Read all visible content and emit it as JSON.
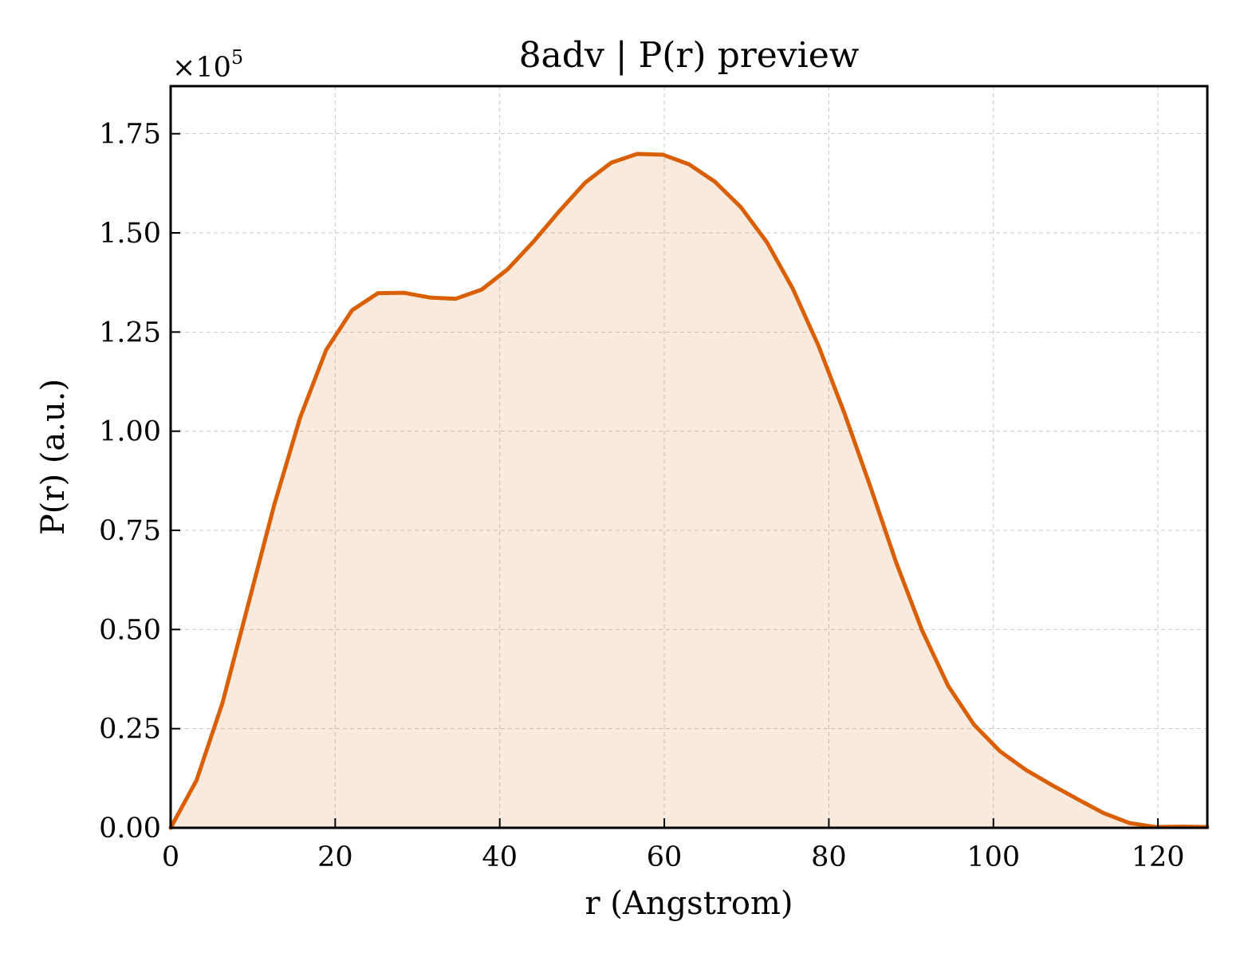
{
  "chart_data": {
    "type": "area",
    "title": "8adv | P(r) preview",
    "xlabel": "r (Angstrom)",
    "ylabel": "P(r) (a.u.)",
    "y_multiplier": {
      "base": "×10",
      "exponent": "5"
    },
    "xlim": [
      0,
      126
    ],
    "ylim": [
      0,
      1.87
    ],
    "xticks": [
      0,
      20,
      40,
      60,
      80,
      100,
      120
    ],
    "xtick_labels": [
      "0",
      "20",
      "40",
      "60",
      "80",
      "100",
      "120"
    ],
    "yticks": [
      0,
      0.25,
      0.5,
      0.75,
      1.0,
      1.25,
      1.5,
      1.75
    ],
    "ytick_labels": [
      "0.00",
      "0.25",
      "0.50",
      "0.75",
      "1.00",
      "1.25",
      "1.50",
      "1.75"
    ],
    "grid": true,
    "legend": "none",
    "series": [
      {
        "color": "#d95f02",
        "fill_color": "#d95f02",
        "x": [
          0,
          3.15,
          6.3,
          9.45,
          12.6,
          15.75,
          18.9,
          22.05,
          25.2,
          28.35,
          31.5,
          34.65,
          37.8,
          40.95,
          44.1,
          47.25,
          50.4,
          53.55,
          56.7,
          59.85,
          63.0,
          66.15,
          69.3,
          72.45,
          75.6,
          78.75,
          81.9,
          85.05,
          88.2,
          91.35,
          94.5,
          97.65,
          100.8,
          103.95,
          107.1,
          110.25,
          113.4,
          116.55,
          119.7,
          122.85,
          126.0
        ],
        "y": [
          0.0,
          0.12,
          0.315,
          0.565,
          0.815,
          1.035,
          1.205,
          1.305,
          1.348,
          1.349,
          1.337,
          1.334,
          1.357,
          1.408,
          1.478,
          1.555,
          1.627,
          1.677,
          1.699,
          1.697,
          1.673,
          1.629,
          1.565,
          1.477,
          1.36,
          1.215,
          1.045,
          0.86,
          0.668,
          0.497,
          0.358,
          0.26,
          0.193,
          0.146,
          0.108,
          0.072,
          0.037,
          0.012,
          0.002,
          0.003,
          0.002
        ]
      }
    ]
  }
}
